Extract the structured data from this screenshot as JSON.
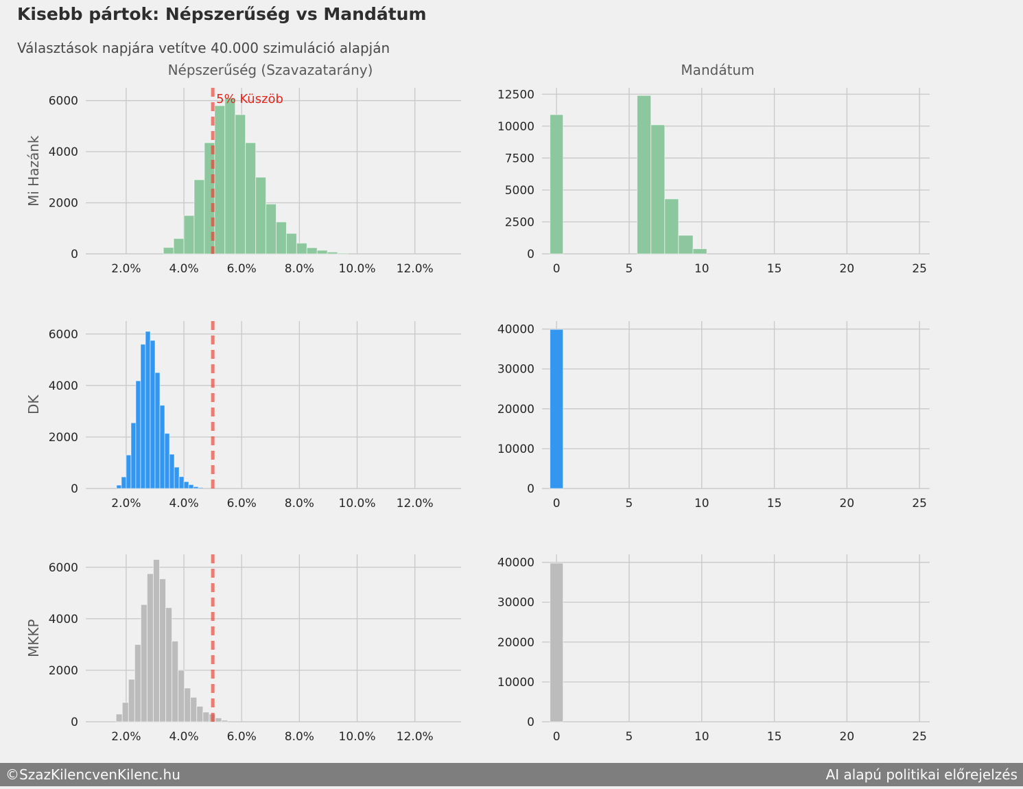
{
  "header": {
    "title": "Kisebb pártok: Népszerűség vs Mandátum",
    "subtitle": "Választások napjára vetítve 40.000 szimuláció alapján"
  },
  "columns": {
    "left_title": "Népszerűség (Szavazatarány)",
    "right_title": "Mandátum"
  },
  "rows": [
    {
      "label": "Mi Hazánk"
    },
    {
      "label": "DK"
    },
    {
      "label": "MKKP"
    }
  ],
  "footer": {
    "left": "©SzazKilencvenKilenc.hu",
    "right": "AI alapú politikai előrejelzés"
  },
  "style": {
    "background": "#f0f0f0",
    "grid": "#cacaca",
    "tick_text": "#262626",
    "axis_label_text": "#595959",
    "bar_green": "#8cc79e",
    "bar_blue": "#3397f2",
    "bar_gray": "#bcbcbc",
    "bar_edge": "#ffffff",
    "threshold_line": "rgba(233,60,45,0.65)",
    "threshold_text": "#e3261d",
    "footer_bg": "#7e7e7e",
    "footer_text": "#fbfbfb"
  },
  "chart_data": [
    {
      "id": "mi-hazank-popularity",
      "type": "bar",
      "party": "Mi Hazánk",
      "measure": "Népszerűség (Szavazatarány)",
      "color": "#8cc79e",
      "x_range": [
        0.6,
        13.6
      ],
      "y_range": [
        0,
        6500
      ],
      "x_ticks": {
        "values": [
          2,
          4,
          6,
          8,
          10,
          12
        ],
        "labels": [
          "2.0%",
          "4.0%",
          "6.0%",
          "8.0%",
          "10.0%",
          "12.0%"
        ]
      },
      "y_ticks": {
        "values": [
          0,
          2000,
          4000,
          6000
        ],
        "labels": [
          "0",
          "2000",
          "4000",
          "6000"
        ]
      },
      "bins": {
        "start": 3.29,
        "width": 0.355,
        "values": [
          250,
          600,
          1500,
          2900,
          4350,
          5800,
          6100,
          5450,
          4350,
          3000,
          1950,
          1250,
          800,
          420,
          240,
          140,
          70,
          30
        ]
      },
      "threshold": {
        "x": 5,
        "label": "5% Küszöb",
        "show_label": true
      }
    },
    {
      "id": "mi-hazank-mandates",
      "type": "bar",
      "party": "Mi Hazánk",
      "measure": "Mandátum",
      "color": "#8cc79e",
      "x_range": [
        -1,
        25.7
      ],
      "y_range": [
        0,
        13000
      ],
      "x_ticks": {
        "values": [
          0,
          5,
          10,
          15,
          20,
          25
        ],
        "labels": [
          "0",
          "5",
          "10",
          "15",
          "20",
          "25"
        ]
      },
      "y_ticks": {
        "values": [
          0,
          2500,
          5000,
          7500,
          10000,
          12500
        ],
        "labels": [
          "0",
          "2500",
          "5000",
          "7500",
          "10000",
          "12500"
        ]
      },
      "bars": [
        [
          -0.45,
          0.45,
          10900
        ],
        [
          5.55,
          6.5,
          12400
        ],
        [
          6.5,
          7.45,
          10100
        ],
        [
          7.45,
          8.4,
          4300
        ],
        [
          8.4,
          9.4,
          1450
        ],
        [
          9.4,
          10.35,
          400
        ]
      ]
    },
    {
      "id": "dk-popularity",
      "type": "bar",
      "party": "DK",
      "measure": "Népszerűség (Szavazatarány)",
      "color": "#3397f2",
      "x_range": [
        0.6,
        13.6
      ],
      "y_range": [
        0,
        6500
      ],
      "x_ticks": {
        "values": [
          2,
          4,
          6,
          8,
          10,
          12
        ],
        "labels": [
          "2.0%",
          "4.0%",
          "6.0%",
          "8.0%",
          "10.0%",
          "12.0%"
        ]
      },
      "y_ticks": {
        "values": [
          0,
          2000,
          4000,
          6000
        ],
        "labels": [
          "0",
          "2000",
          "4000",
          "6000"
        ]
      },
      "bins": {
        "start": 1.667,
        "width": 0.1667,
        "values": [
          130,
          450,
          1300,
          2550,
          4180,
          5600,
          6100,
          5750,
          4500,
          3230,
          2140,
          1330,
          830,
          460,
          265,
          150,
          70,
          35
        ]
      },
      "threshold": {
        "x": 5,
        "label": "5% Küszöb",
        "show_label": false
      }
    },
    {
      "id": "dk-mandates",
      "type": "bar",
      "party": "DK",
      "measure": "Mandátum",
      "color": "#3397f2",
      "x_range": [
        -1,
        25.7
      ],
      "y_range": [
        0,
        42000
      ],
      "x_ticks": {
        "values": [
          0,
          5,
          10,
          15,
          20,
          25
        ],
        "labels": [
          "0",
          "5",
          "10",
          "15",
          "20",
          "25"
        ]
      },
      "y_ticks": {
        "values": [
          0,
          10000,
          20000,
          30000,
          40000
        ],
        "labels": [
          "0",
          "10000",
          "20000",
          "30000",
          "40000"
        ]
      },
      "bars": [
        [
          -0.45,
          0.45,
          39900
        ]
      ]
    },
    {
      "id": "mkkp-popularity",
      "type": "bar",
      "party": "MKKP",
      "measure": "Népszerűség (Szavazatarány)",
      "color": "#bcbcbc",
      "x_range": [
        0.6,
        13.6
      ],
      "y_range": [
        0,
        6500
      ],
      "x_ticks": {
        "values": [
          2,
          4,
          6,
          8,
          10,
          12
        ],
        "labels": [
          "2.0%",
          "4.0%",
          "6.0%",
          "8.0%",
          "10.0%",
          "12.0%"
        ]
      },
      "y_ticks": {
        "values": [
          0,
          2000,
          4000,
          6000
        ],
        "labels": [
          "0",
          "2000",
          "4000",
          "6000"
        ]
      },
      "bins": {
        "start": 1.65,
        "width": 0.215,
        "values": [
          300,
          750,
          1650,
          3000,
          4550,
          5750,
          6300,
          5550,
          4430,
          3130,
          2000,
          1310,
          950,
          600,
          375,
          300,
          150,
          60
        ]
      },
      "threshold": {
        "x": 5,
        "label": "5% Küszöb",
        "show_label": false
      }
    },
    {
      "id": "mkkp-mandates",
      "type": "bar",
      "party": "MKKP",
      "measure": "Mandátum",
      "color": "#bcbcbc",
      "x_range": [
        -1,
        25.7
      ],
      "y_range": [
        0,
        42000
      ],
      "x_ticks": {
        "values": [
          0,
          5,
          10,
          15,
          20,
          25
        ],
        "labels": [
          "0",
          "5",
          "10",
          "15",
          "20",
          "25"
        ]
      },
      "y_ticks": {
        "values": [
          0,
          10000,
          20000,
          30000,
          40000
        ],
        "labels": [
          "0",
          "10000",
          "20000",
          "30000",
          "40000"
        ]
      },
      "bars": [
        [
          -0.45,
          0.45,
          39800
        ]
      ]
    }
  ]
}
